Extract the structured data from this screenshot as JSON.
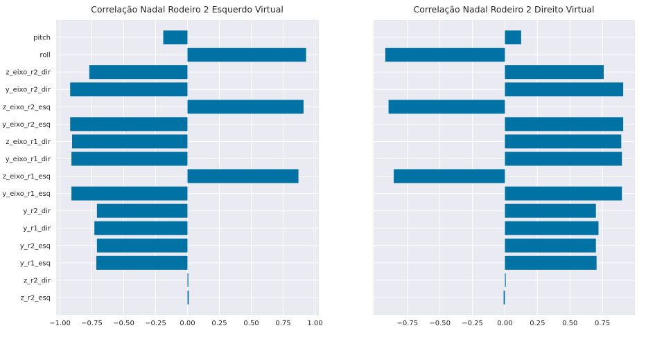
{
  "colors": {
    "bar": "#0072a3",
    "plot_bg": "#eaeaf2",
    "grid": "#ffffff",
    "text": "#262626"
  },
  "chart_data": [
    {
      "type": "bar",
      "orientation": "horizontal",
      "title": "Correlação Nadal Rodeiro 2 Esquerdo Virtual",
      "categories": [
        "pitch",
        "roll",
        "z_eixo_r2_dir",
        "y_eixo_r2_dir",
        "z_eixo_r2_esq",
        "y_eixo_r2_esq",
        "z_eixo_r1_dir",
        "y_eixo_r1_dir",
        "z_eixo_r1_esq",
        "y_eixo_r1_esq",
        "y_r2_dir",
        "y_r1_dir",
        "y_r2_esq",
        "y_r1_esq",
        "z_r2_dir",
        "z_r2_esq"
      ],
      "values": [
        -0.19,
        0.93,
        -0.77,
        -0.92,
        0.91,
        -0.92,
        -0.905,
        -0.91,
        0.87,
        -0.91,
        -0.71,
        -0.73,
        -0.71,
        -0.715,
        0.005,
        0.01
      ],
      "xlim": [
        -1.03,
        1.03
      ],
      "xticks": [
        "−1.00",
        "−0.75",
        "−0.50",
        "−0.25",
        "0.00",
        "0.25",
        "0.50",
        "0.75",
        "1.00"
      ],
      "xtick_values": [
        -1.0,
        -0.75,
        -0.5,
        -0.25,
        0.0,
        0.25,
        0.5,
        0.75,
        1.0
      ],
      "show_category_labels": true,
      "grid": true
    },
    {
      "type": "bar",
      "orientation": "horizontal",
      "title": "Correlação Nadal Rodeiro 2 Direito Virtual",
      "categories": [
        "pitch",
        "roll",
        "z_eixo_r2_dir",
        "y_eixo_r2_dir",
        "z_eixo_r2_esq",
        "y_eixo_r2_esq",
        "z_eixo_r1_dir",
        "y_eixo_r1_dir",
        "z_eixo_r1_esq",
        "y_eixo_r1_esq",
        "y_r2_dir",
        "y_r1_dir",
        "y_r2_esq",
        "y_r1_esq",
        "z_r2_dir",
        "z_r2_esq"
      ],
      "values": [
        0.125,
        -0.92,
        0.76,
        0.91,
        -0.895,
        0.91,
        0.895,
        0.9,
        -0.855,
        0.9,
        0.7,
        0.72,
        0.7,
        0.705,
        0.005,
        -0.01
      ],
      "xlim": [
        -1.01,
        1.0
      ],
      "xticks": [
        "−0.75",
        "−0.50",
        "−0.25",
        "0.00",
        "0.25",
        "0.50",
        "0.75"
      ],
      "xtick_values": [
        -0.75,
        -0.5,
        -0.25,
        0.0,
        0.25,
        0.5,
        0.75
      ],
      "show_category_labels": false,
      "grid": true
    }
  ]
}
